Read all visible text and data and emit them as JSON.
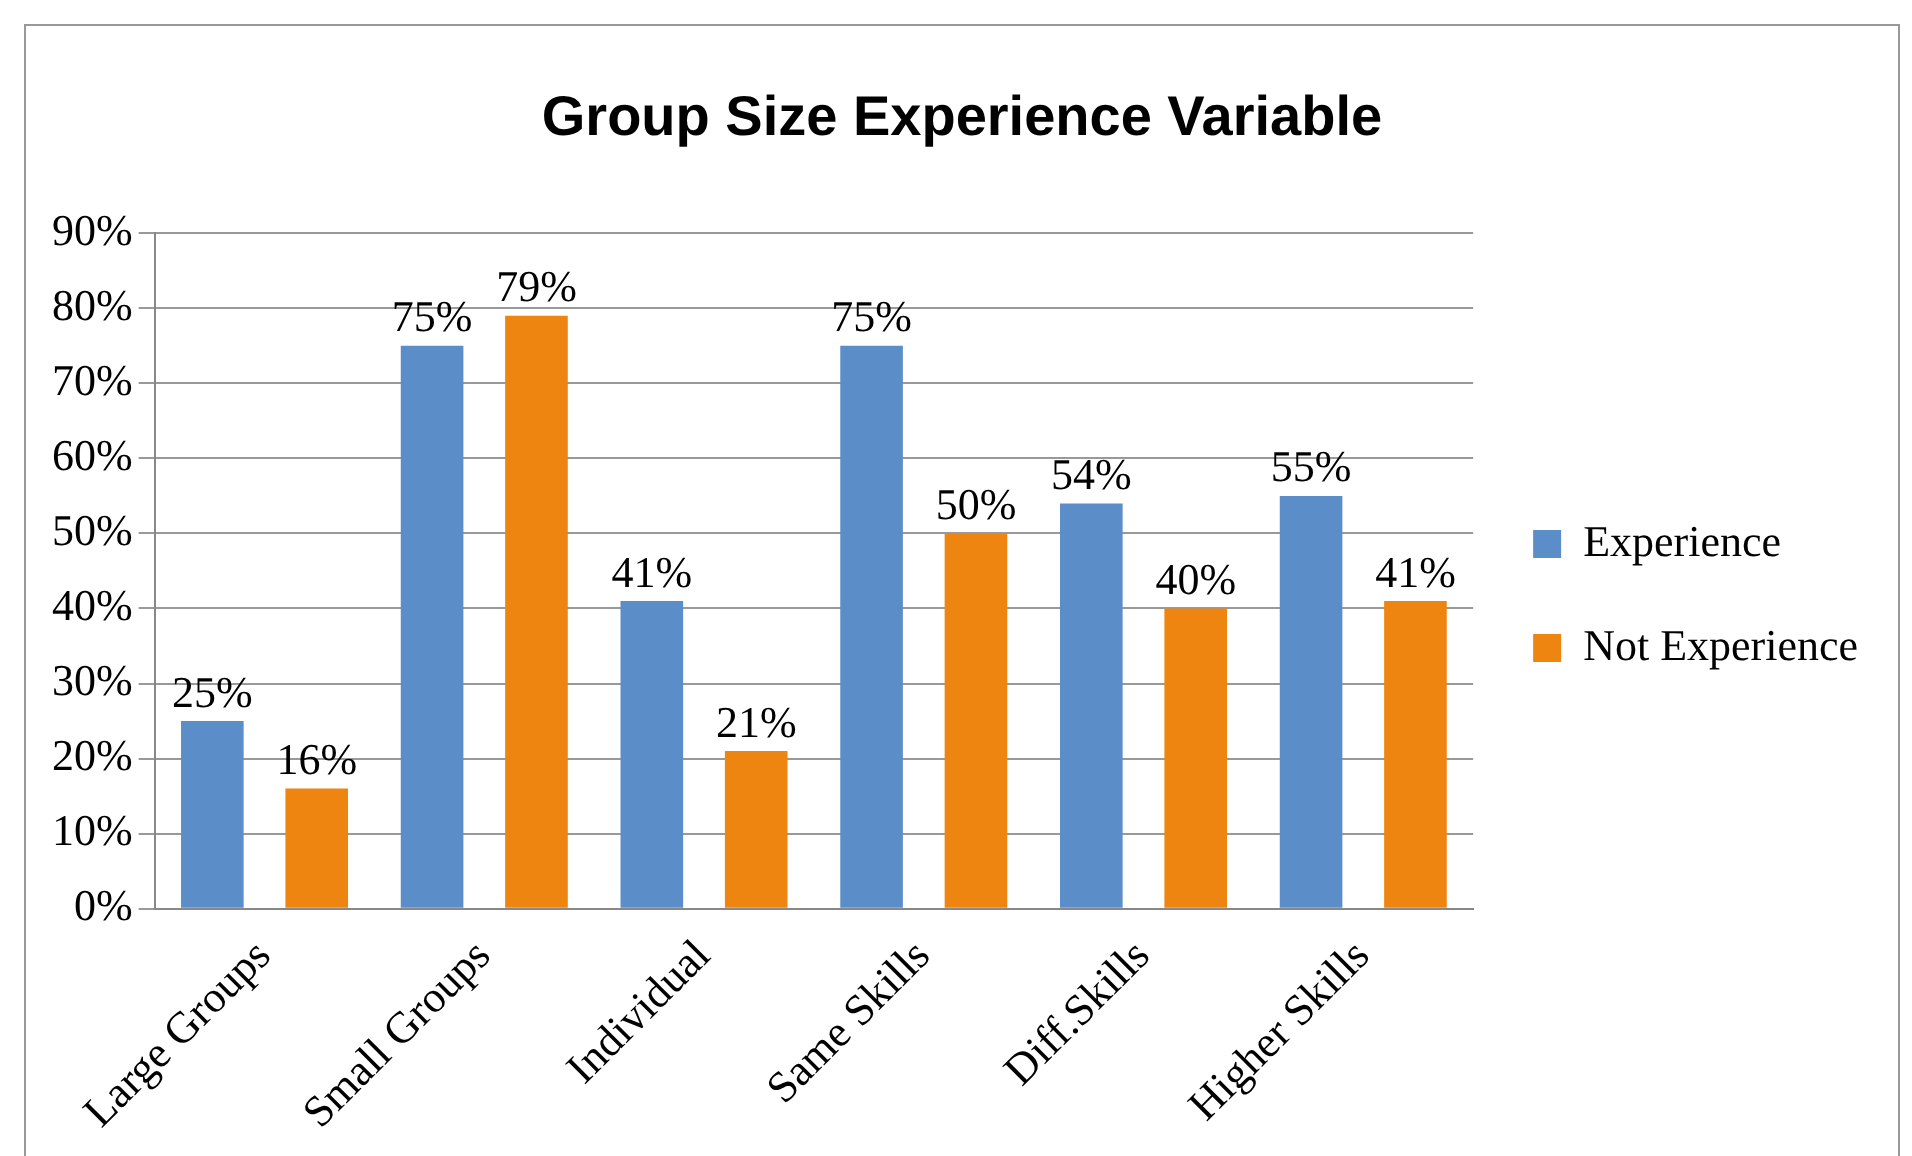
{
  "chart_data": {
    "type": "bar",
    "title": "Group Size Experience Variable",
    "categories": [
      "Large Groups",
      "Small Groups",
      "Individual",
      "Same Skills",
      "Diff.Skills",
      "Higher Skills"
    ],
    "series": [
      {
        "name": "Experience",
        "color": "#5b8ec9",
        "values": [
          25,
          75,
          41,
          75,
          54,
          55
        ],
        "value_labels": [
          "25%",
          "75%",
          "41%",
          "75%",
          "54%",
          "55%"
        ]
      },
      {
        "name": "Not Experience",
        "color": "#ee8510",
        "values": [
          16,
          79,
          21,
          50,
          40,
          41
        ],
        "value_labels": [
          "16%",
          "79%",
          "21%",
          "50%",
          "40%",
          "41%"
        ]
      }
    ],
    "ylim": [
      0,
      90
    ],
    "yticks": [
      {
        "value": 0,
        "label": "0%"
      },
      {
        "value": 10,
        "label": "10%"
      },
      {
        "value": 20,
        "label": "20%"
      },
      {
        "value": 30,
        "label": "30%"
      },
      {
        "value": 40,
        "label": "40%"
      },
      {
        "value": 50,
        "label": "50%"
      },
      {
        "value": 60,
        "label": "60%"
      },
      {
        "value": 70,
        "label": "70%"
      },
      {
        "value": 80,
        "label": "80%"
      },
      {
        "value": 90,
        "label": "90%"
      }
    ],
    "grid": "y",
    "legend": "right"
  }
}
